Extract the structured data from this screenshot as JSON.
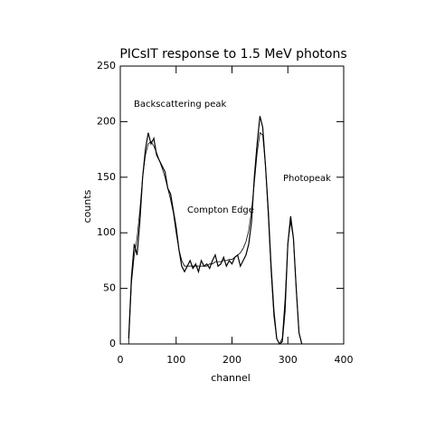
{
  "chart_data": {
    "type": "line",
    "title": "PICsIT response to 1.5 MeV photons",
    "x_label": "channel",
    "y_label": "counts",
    "annotations": [
      "Backscattering peak",
      "Compton Edge",
      "Photopeak"
    ],
    "x": [
      15,
      20,
      25,
      30,
      35,
      40,
      45,
      50,
      55,
      60,
      65,
      70,
      75,
      80,
      85,
      90,
      95,
      100,
      105,
      110,
      115,
      120,
      125,
      130,
      135,
      140,
      145,
      150,
      155,
      160,
      165,
      170,
      175,
      180,
      185,
      190,
      195,
      200,
      205,
      210,
      215,
      220,
      225,
      230,
      235,
      240,
      245,
      250,
      255,
      260,
      265,
      270,
      275,
      280,
      285,
      290,
      295,
      300,
      305,
      310,
      315,
      320,
      325
    ],
    "series": [
      {
        "color": "#000000",
        "values": [
          5,
          60,
          90,
          80,
          110,
          150,
          175,
          190,
          180,
          185,
          170,
          165,
          160,
          155,
          140,
          135,
          120,
          105,
          85,
          70,
          65,
          70,
          75,
          68,
          72,
          65,
          75,
          70,
          72,
          68,
          75,
          80,
          70,
          72,
          78,
          70,
          75,
          72,
          78,
          80,
          70,
          75,
          80,
          90,
          110,
          150,
          180,
          205,
          195,
          160,
          120,
          70,
          30,
          5,
          0,
          2,
          30,
          90,
          115,
          95,
          50,
          10,
          0
        ]
      },
      {
        "color": "#000000",
        "values": [
          0,
          55,
          80,
          95,
          120,
          150,
          170,
          180,
          182,
          178,
          172,
          165,
          158,
          150,
          140,
          130,
          118,
          100,
          85,
          75,
          70,
          70,
          70,
          70,
          70,
          70,
          70,
          70,
          70,
          72,
          72,
          74,
          74,
          74,
          75,
          75,
          76,
          76,
          78,
          80,
          82,
          86,
          92,
          102,
          120,
          145,
          172,
          190,
          188,
          160,
          115,
          65,
          25,
          5,
          0,
          5,
          40,
          90,
          110,
          95,
          50,
          10,
          0
        ]
      }
    ],
    "xlim": [
      0,
      400
    ],
    "xticks": [
      0,
      100,
      200,
      300,
      400
    ],
    "ylim": [
      0,
      250
    ],
    "yticks": [
      0,
      50,
      100,
      150,
      200,
      250
    ],
    "grid": false
  }
}
